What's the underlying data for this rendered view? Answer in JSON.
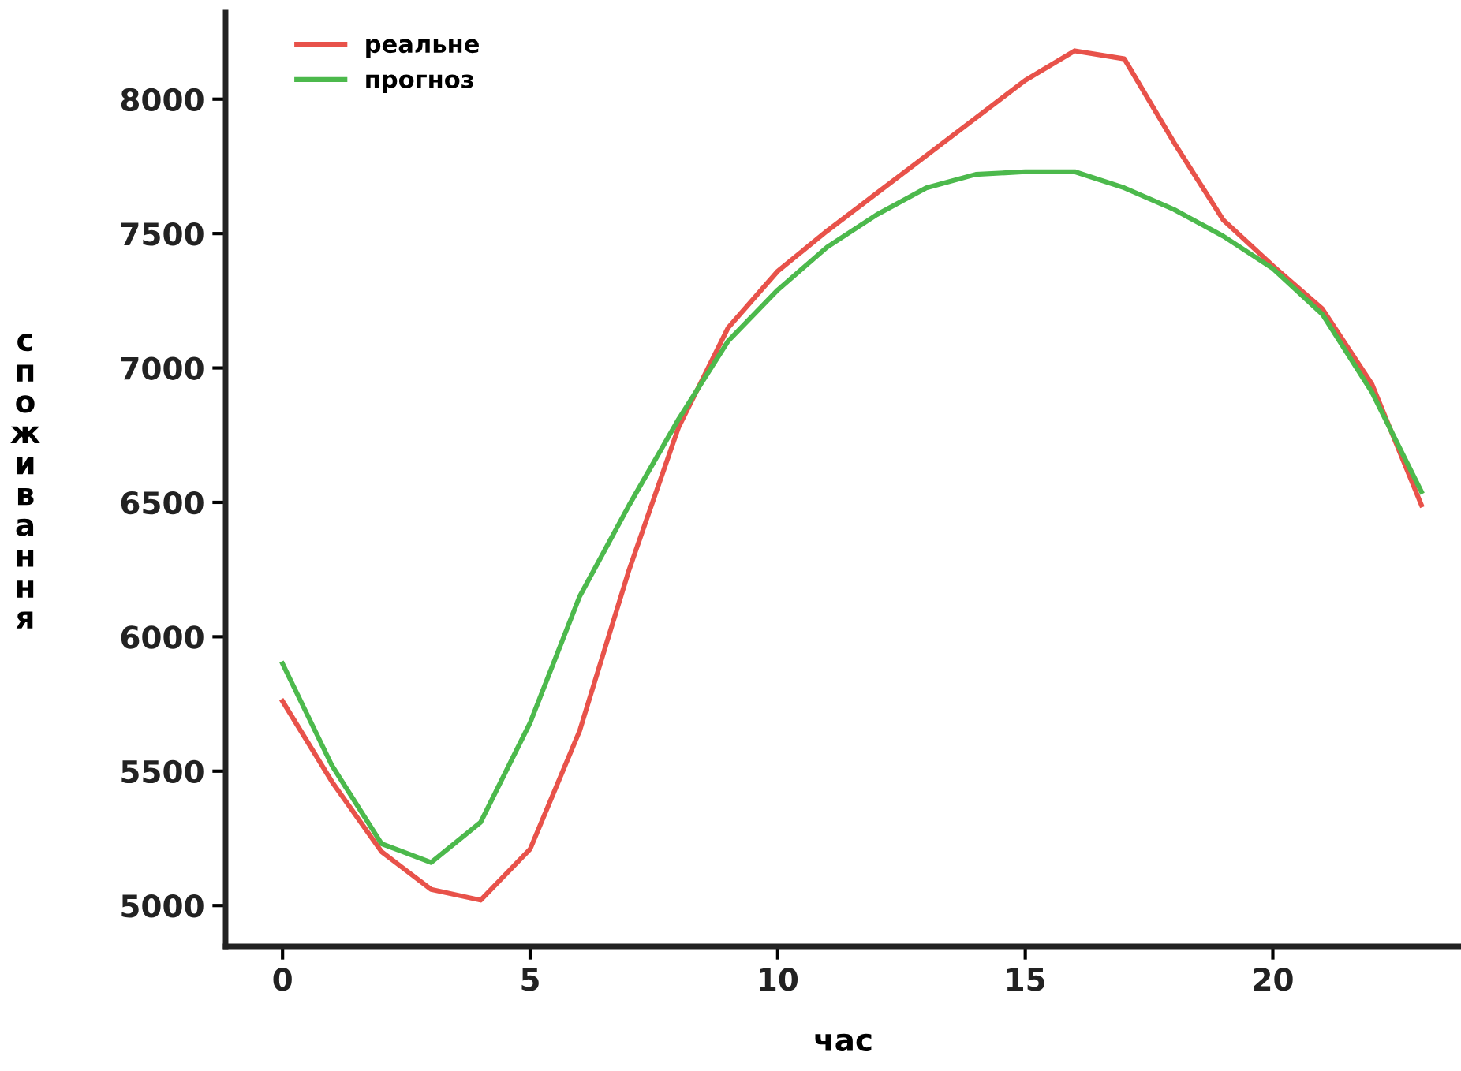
{
  "chart_data": {
    "type": "line",
    "xlabel": "час",
    "ylabel": "споживання",
    "x": [
      0,
      1,
      2,
      3,
      4,
      5,
      6,
      7,
      8,
      9,
      10,
      11,
      12,
      13,
      14,
      15,
      16,
      17,
      18,
      19,
      20,
      21,
      22,
      23
    ],
    "series": [
      {
        "name": "реальне",
        "color": "#e8524a",
        "values": [
          5760,
          5460,
          5200,
          5060,
          5020,
          5210,
          5650,
          6250,
          6780,
          7150,
          7360,
          7510,
          7650,
          7790,
          7930,
          8070,
          8180,
          8150,
          7840,
          7550,
          7380,
          7220,
          6940,
          6490
        ]
      },
      {
        "name": "прогноз",
        "color": "#4cb94c",
        "values": [
          5900,
          5520,
          5230,
          5160,
          5310,
          5680,
          6150,
          6490,
          6810,
          7100,
          7290,
          7450,
          7570,
          7670,
          7720,
          7730,
          7730,
          7670,
          7590,
          7490,
          7370,
          7200,
          6910,
          6540
        ]
      }
    ],
    "xlim": [
      -1.15,
      23.8
    ],
    "ylim": [
      4848,
      8322
    ],
    "xticks": [
      0,
      5,
      10,
      15,
      20
    ],
    "yticks": [
      5000,
      5500,
      6000,
      6500,
      7000,
      7500,
      8000
    ],
    "grid": false,
    "legend": "top left",
    "marker": "none",
    "line_style": "solid"
  }
}
